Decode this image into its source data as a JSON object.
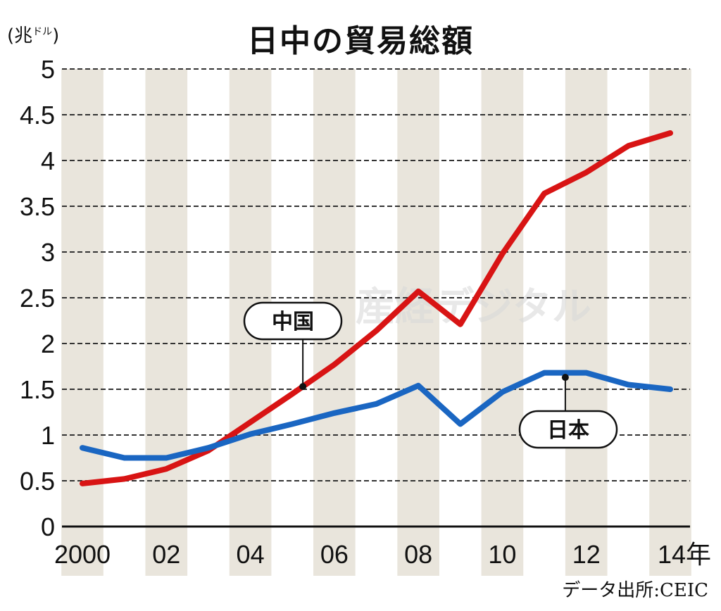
{
  "chart_data": {
    "type": "line",
    "title": "日中の貿易総額",
    "ylabel": "(兆ドル)",
    "ylabel_main": "(兆",
    "ylabel_sup": "ドル",
    "ylabel_close": ")",
    "source": "データ出所:CEIC",
    "watermark": "産経デジタル",
    "x": [
      2000,
      2001,
      2002,
      2003,
      2004,
      2005,
      2006,
      2007,
      2008,
      2009,
      2010,
      2011,
      2012,
      2013,
      2014
    ],
    "xticks": [
      2000,
      2002,
      2004,
      2006,
      2008,
      2010,
      2012,
      2014
    ],
    "xtick_labels": [
      "2000",
      "02",
      "04",
      "06",
      "08",
      "10",
      "12",
      "14年"
    ],
    "yticks": [
      0,
      0.5,
      1,
      1.5,
      2,
      2.5,
      3,
      3.5,
      4,
      4.5,
      5
    ],
    "ytick_labels": [
      "0",
      "0.5",
      "1",
      "1.5",
      "2",
      "2.5",
      "3",
      "3.5",
      "4",
      "4.5",
      "5"
    ],
    "ylim": [
      0,
      5
    ],
    "grid": "horizontal dashed",
    "series": [
      {
        "name": "中国",
        "color": "#d81414",
        "values": [
          0.47,
          0.52,
          0.63,
          0.83,
          1.14,
          1.45,
          1.77,
          2.14,
          2.57,
          2.21,
          2.98,
          3.64,
          3.87,
          4.16,
          4.3
        ],
        "label_year": 2005
      },
      {
        "name": "日本",
        "color": "#1a66c2",
        "values": [
          0.86,
          0.75,
          0.75,
          0.86,
          1.01,
          1.12,
          1.24,
          1.34,
          1.54,
          1.12,
          1.47,
          1.68,
          1.68,
          1.55,
          1.5
        ],
        "label_year": 2011.5
      }
    ],
    "colors": {
      "stripe": "#e9e5dc",
      "grid": "#333333"
    }
  }
}
